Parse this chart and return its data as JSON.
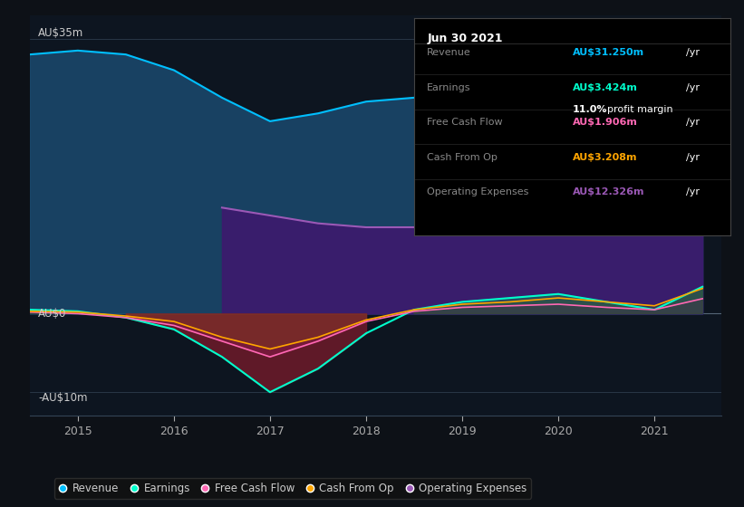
{
  "background_color": "#0d1117",
  "plot_bg_color": "#0d1520",
  "years": [
    2014.5,
    2015,
    2015.5,
    2016,
    2016.5,
    2017,
    2017.5,
    2018,
    2018.5,
    2019,
    2019.5,
    2020,
    2020.5,
    2021,
    2021.5
  ],
  "revenue": [
    33.0,
    33.5,
    33.0,
    31.0,
    27.5,
    24.5,
    25.5,
    27.0,
    27.5,
    28.5,
    30.5,
    33.5,
    31.0,
    28.0,
    31.25
  ],
  "earnings": [
    0.5,
    0.3,
    -0.5,
    -2.0,
    -5.5,
    -10.0,
    -7.0,
    -2.5,
    0.5,
    1.5,
    2.0,
    2.5,
    1.5,
    0.5,
    3.424
  ],
  "free_cash_flow": [
    0.2,
    0.0,
    -0.5,
    -1.5,
    -3.5,
    -5.5,
    -3.5,
    -1.0,
    0.3,
    0.8,
    1.0,
    1.2,
    0.8,
    0.5,
    1.906
  ],
  "cash_from_op": [
    0.3,
    0.2,
    -0.3,
    -1.0,
    -3.0,
    -4.5,
    -3.0,
    -0.8,
    0.5,
    1.2,
    1.5,
    2.0,
    1.5,
    1.0,
    3.208
  ],
  "op_expenses_x": [
    2016.5,
    2017,
    2017.5,
    2018,
    2018.5,
    2019,
    2019.5,
    2020,
    2020.5,
    2021,
    2021.5
  ],
  "op_expenses_y": [
    13.5,
    12.5,
    11.5,
    11.0,
    11.0,
    11.5,
    12.0,
    12.5,
    12.0,
    11.5,
    12.326
  ],
  "revenue_color": "#00bfff",
  "earnings_color": "#00ffcc",
  "free_cash_flow_color": "#ff69b4",
  "cash_from_op_color": "#ffa500",
  "op_expenses_color": "#9b59b6",
  "revenue_fill": "#1a4a6e",
  "op_expenses_fill": "#3d1a6e",
  "ylabel_35": "AU$35m",
  "ylabel_0": "AU$0",
  "ylabel_neg10": "-AU$10m",
  "xtick_labels": [
    "2015",
    "2016",
    "2017",
    "2018",
    "2019",
    "2020",
    "2021"
  ],
  "xtick_positions": [
    2015,
    2016,
    2017,
    2018,
    2019,
    2020,
    2021
  ],
  "info_title": "Jun 30 2021",
  "legend_items": [
    {
      "label": "Revenue",
      "color": "#00bfff"
    },
    {
      "label": "Earnings",
      "color": "#00ffcc"
    },
    {
      "label": "Free Cash Flow",
      "color": "#ff69b4"
    },
    {
      "label": "Cash From Op",
      "color": "#ffa500"
    },
    {
      "label": "Operating Expenses",
      "color": "#9b59b6"
    }
  ],
  "ymin": -13,
  "ymax": 38,
  "xmin": 2014.5,
  "xmax": 2021.7
}
